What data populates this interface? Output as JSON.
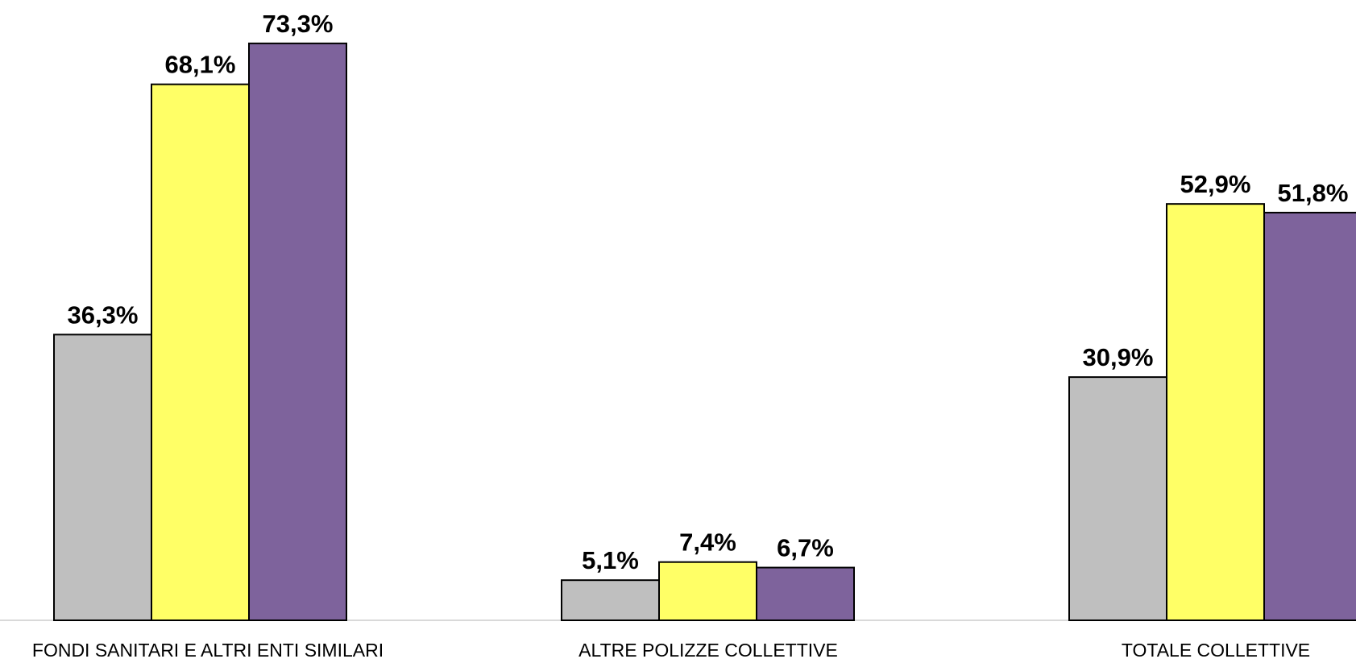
{
  "chart_data": {
    "type": "bar",
    "categories": [
      "FONDI SANITARI E ALTRI ENTI SIMILARI",
      "ALTRE POLIZZE COLLETTIVE",
      "TOTALE COLLETTIVE"
    ],
    "series": [
      {
        "values": [
          36.3,
          5.1,
          30.9
        ],
        "labels": [
          "36,3%",
          "5,1%",
          "30,9%"
        ],
        "color": "#BFBFBF"
      },
      {
        "values": [
          68.1,
          7.4,
          52.9
        ],
        "labels": [
          "68,1%",
          "7,4%",
          "52,9%"
        ],
        "color": "#FFFF66"
      },
      {
        "values": [
          73.3,
          6.7,
          51.8
        ],
        "labels": [
          "73,3%",
          "6,7%",
          "51,8%"
        ],
        "color": "#7E639C"
      }
    ],
    "ylim": [
      0,
      100
    ],
    "grid": false,
    "legend": "none",
    "axis_color": "#D9D9D9"
  }
}
